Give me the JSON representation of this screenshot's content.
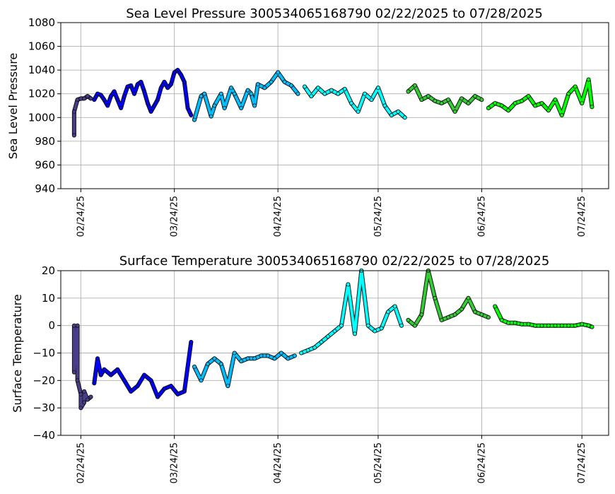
{
  "chart_data": [
    {
      "type": "scatter",
      "title": "Sea Level Pressure 300534065168790  02/22/2025 to 07/28/2025",
      "xlabel": "",
      "ylabel": "Sea Level Pressure",
      "ylim": [
        940,
        1080
      ],
      "yticks": [
        "940",
        "960",
        "980",
        "1000",
        "1020",
        "1040",
        "1060",
        "1080"
      ],
      "xlim": [
        "2025-02-18",
        "2025-08-01"
      ],
      "xticks": [
        {
          "date": "2025-02-24",
          "label": "02/24/25"
        },
        {
          "date": "2025-03-24",
          "label": "03/24/25"
        },
        {
          "date": "2025-04-24",
          "label": "04/24/25"
        },
        {
          "date": "2025-05-24",
          "label": "05/24/25"
        },
        {
          "date": "2025-06-24",
          "label": "06/24/25"
        },
        {
          "date": "2025-07-24",
          "label": "07/24/25"
        }
      ],
      "grid": true,
      "series": [
        {
          "color": "#483d8b",
          "x": [
            "2025-02-22",
            "2025-02-22",
            "2025-02-23",
            "2025-02-24",
            "2025-02-25",
            "2025-02-26",
            "2025-02-27"
          ],
          "y": [
            985,
            1005,
            1015,
            1016,
            1016,
            1018,
            1016
          ]
        },
        {
          "color": "#0000ff",
          "x": [
            "2025-02-28",
            "2025-03-01",
            "2025-03-02",
            "2025-03-03",
            "2025-03-04",
            "2025-03-05",
            "2025-03-06",
            "2025-03-07",
            "2025-03-08",
            "2025-03-09",
            "2025-03-10",
            "2025-03-11",
            "2025-03-12",
            "2025-03-13",
            "2025-03-14",
            "2025-03-15",
            "2025-03-16",
            "2025-03-17",
            "2025-03-18",
            "2025-03-19",
            "2025-03-20",
            "2025-03-21",
            "2025-03-22",
            "2025-03-23",
            "2025-03-24",
            "2025-03-25",
            "2025-03-26",
            "2025-03-27",
            "2025-03-28",
            "2025-03-29"
          ],
          "y": [
            1015,
            1020,
            1019,
            1015,
            1010,
            1018,
            1022,
            1015,
            1008,
            1018,
            1026,
            1027,
            1020,
            1028,
            1030,
            1022,
            1012,
            1005,
            1010,
            1015,
            1025,
            1030,
            1025,
            1028,
            1038,
            1040,
            1036,
            1030,
            1008,
            1002
          ]
        },
        {
          "color": "#00bfff",
          "x": [
            "2025-03-30",
            "2025-04-01",
            "2025-04-02",
            "2025-04-04",
            "2025-04-05",
            "2025-04-07",
            "2025-04-08",
            "2025-04-10",
            "2025-04-11",
            "2025-04-13",
            "2025-04-15",
            "2025-04-16",
            "2025-04-17",
            "2025-04-18",
            "2025-04-20",
            "2025-04-22",
            "2025-04-24",
            "2025-04-26",
            "2025-04-28",
            "2025-04-30"
          ],
          "y": [
            998,
            1018,
            1020,
            1001,
            1010,
            1020,
            1008,
            1025,
            1020,
            1008,
            1023,
            1020,
            1010,
            1028,
            1025,
            1030,
            1038,
            1030,
            1027,
            1020
          ]
        },
        {
          "color": "#00ffff",
          "x": [
            "2025-05-02",
            "2025-05-04",
            "2025-05-06",
            "2025-05-08",
            "2025-05-10",
            "2025-05-12",
            "2025-05-14",
            "2025-05-16",
            "2025-05-18",
            "2025-05-20",
            "2025-05-22",
            "2025-05-24",
            "2025-05-26",
            "2025-05-28",
            "2025-05-30",
            "2025-06-01"
          ],
          "y": [
            1026,
            1018,
            1025,
            1020,
            1023,
            1020,
            1024,
            1012,
            1005,
            1020,
            1015,
            1025,
            1010,
            1002,
            1005,
            1000
          ]
        },
        {
          "color": "#32cd32",
          "x": [
            "2025-06-02",
            "2025-06-04",
            "2025-06-06",
            "2025-06-08",
            "2025-06-10",
            "2025-06-12",
            "2025-06-14",
            "2025-06-16",
            "2025-06-18",
            "2025-06-20",
            "2025-06-22",
            "2025-06-24"
          ],
          "y": [
            1022,
            1027,
            1015,
            1018,
            1014,
            1012,
            1015,
            1005,
            1016,
            1012,
            1018,
            1015
          ]
        },
        {
          "color": "#00ff00",
          "x": [
            "2025-06-26",
            "2025-06-28",
            "2025-06-30",
            "2025-07-02",
            "2025-07-04",
            "2025-07-06",
            "2025-07-08",
            "2025-07-10",
            "2025-07-12",
            "2025-07-14",
            "2025-07-16",
            "2025-07-18",
            "2025-07-20",
            "2025-07-22",
            "2025-07-24",
            "2025-07-26",
            "2025-07-27"
          ],
          "y": [
            1008,
            1012,
            1010,
            1006,
            1012,
            1014,
            1018,
            1010,
            1012,
            1006,
            1015,
            1002,
            1020,
            1026,
            1012,
            1032,
            1009
          ]
        }
      ]
    },
    {
      "type": "scatter",
      "title": "Surface Temperature 300534065168790  02/22/2025 to 07/28/2025",
      "xlabel": "",
      "ylabel": "Surface Temperature",
      "ylim": [
        -40,
        20
      ],
      "yticks": [
        "−40",
        "−30",
        "−20",
        "−10",
        "0",
        "10",
        "20"
      ],
      "xlim": [
        "2025-02-18",
        "2025-08-01"
      ],
      "xticks": [
        {
          "date": "2025-02-24",
          "label": "02/24/25"
        },
        {
          "date": "2025-03-24",
          "label": "03/24/25"
        },
        {
          "date": "2025-04-24",
          "label": "04/24/25"
        },
        {
          "date": "2025-05-24",
          "label": "05/24/25"
        },
        {
          "date": "2025-06-24",
          "label": "06/24/25"
        },
        {
          "date": "2025-07-24",
          "label": "07/24/25"
        }
      ],
      "grid": true,
      "series": [
        {
          "color": "#483d8b",
          "x": [
            "2025-02-22",
            "2025-02-22",
            "2025-02-23",
            "2025-02-23",
            "2025-02-24",
            "2025-02-24",
            "2025-02-25",
            "2025-02-25",
            "2025-02-26",
            "2025-02-27"
          ],
          "y": [
            0,
            -17,
            0,
            -20,
            -25,
            -30,
            -28,
            -24,
            -27,
            -26
          ]
        },
        {
          "color": "#0000ff",
          "x": [
            "2025-02-28",
            "2025-03-01",
            "2025-03-02",
            "2025-03-03",
            "2025-03-05",
            "2025-03-07",
            "2025-03-09",
            "2025-03-11",
            "2025-03-13",
            "2025-03-15",
            "2025-03-17",
            "2025-03-19",
            "2025-03-21",
            "2025-03-23",
            "2025-03-25",
            "2025-03-27",
            "2025-03-29"
          ],
          "y": [
            -21,
            -12,
            -18,
            -16,
            -18,
            -16,
            -20,
            -24,
            -22,
            -18,
            -20,
            -26,
            -23,
            -22,
            -25,
            -24,
            -6
          ]
        },
        {
          "color": "#00bfff",
          "x": [
            "2025-03-30",
            "2025-04-01",
            "2025-04-03",
            "2025-04-05",
            "2025-04-07",
            "2025-04-09",
            "2025-04-11",
            "2025-04-13",
            "2025-04-15",
            "2025-04-17",
            "2025-04-19",
            "2025-04-21",
            "2025-04-23",
            "2025-04-25",
            "2025-04-27",
            "2025-04-29"
          ],
          "y": [
            -15,
            -20,
            -14,
            -12,
            -14,
            -22,
            -10,
            -13,
            -12,
            -12,
            -11,
            -11,
            -12,
            -10,
            -12,
            -11
          ]
        },
        {
          "color": "#00ffff",
          "x": [
            "2025-05-01",
            "2025-05-03",
            "2025-05-05",
            "2025-05-07",
            "2025-05-09",
            "2025-05-11",
            "2025-05-13",
            "2025-05-15",
            "2025-05-17",
            "2025-05-19",
            "2025-05-21",
            "2025-05-23",
            "2025-05-25",
            "2025-05-27",
            "2025-05-29",
            "2025-05-31"
          ],
          "y": [
            -10,
            -9,
            -8,
            -6,
            -4,
            -2,
            0,
            15,
            -3,
            20,
            0,
            -2,
            -1,
            5,
            7,
            0
          ]
        },
        {
          "color": "#32cd32",
          "x": [
            "2025-06-02",
            "2025-06-04",
            "2025-06-06",
            "2025-06-08",
            "2025-06-10",
            "2025-06-12",
            "2025-06-14",
            "2025-06-16",
            "2025-06-18",
            "2025-06-20",
            "2025-06-22",
            "2025-06-24",
            "2025-06-26"
          ],
          "y": [
            2,
            0,
            4,
            20,
            10,
            2,
            3,
            4,
            6,
            10,
            5,
            4,
            3
          ]
        },
        {
          "color": "#00ff00",
          "x": [
            "2025-06-28",
            "2025-06-30",
            "2025-07-02",
            "2025-07-04",
            "2025-07-06",
            "2025-07-08",
            "2025-07-10",
            "2025-07-12",
            "2025-07-14",
            "2025-07-16",
            "2025-07-18",
            "2025-07-20",
            "2025-07-22",
            "2025-07-24",
            "2025-07-26",
            "2025-07-27"
          ],
          "y": [
            7,
            2,
            1,
            1,
            0.5,
            0.5,
            0,
            0,
            0,
            0,
            0,
            0,
            0,
            0.5,
            0,
            -0.5
          ]
        }
      ]
    }
  ]
}
